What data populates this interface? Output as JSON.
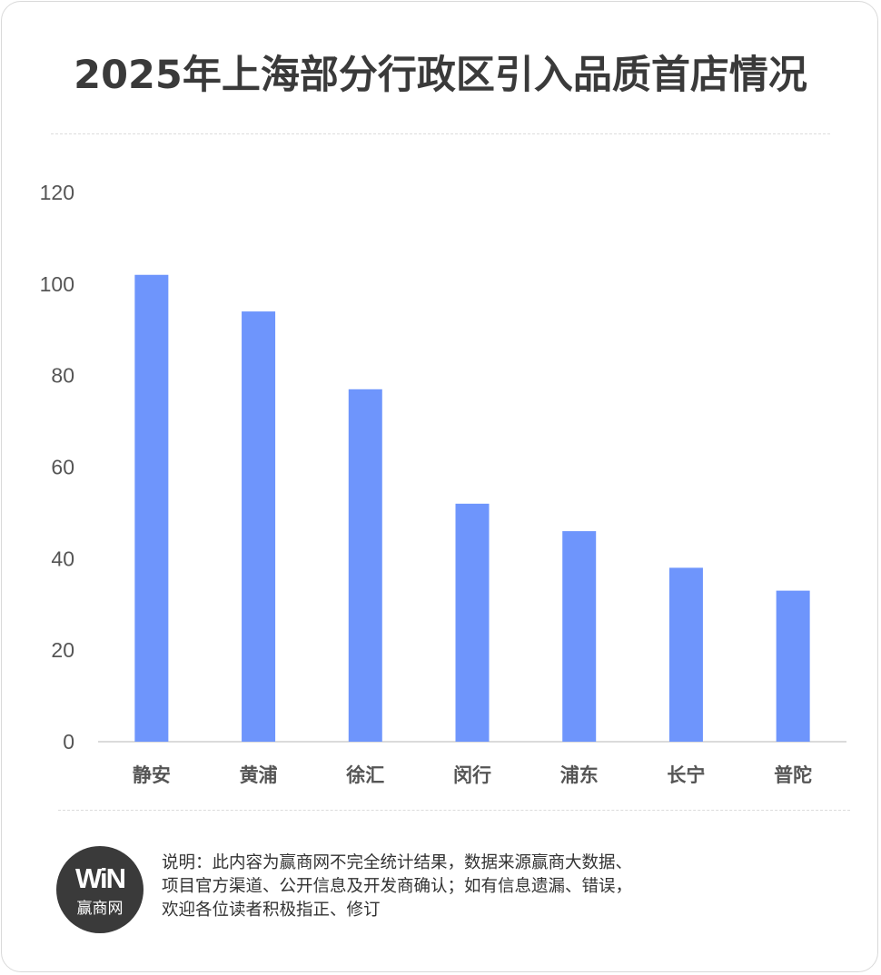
{
  "title": "2025年上海部分行政区引入品质首店情况",
  "chart_data": {
    "type": "bar",
    "categories": [
      "静安",
      "黄浦",
      "徐汇",
      "闵行",
      "浦东",
      "长宁",
      "普陀"
    ],
    "values": [
      102,
      94,
      77,
      52,
      46,
      38,
      33
    ],
    "y_ticks": [
      "0",
      "20",
      "40",
      "60",
      "80",
      "100",
      "120"
    ],
    "ylim": [
      0,
      120
    ],
    "bar_color": "#6e95fc",
    "grid": false
  },
  "logo": {
    "mark": "WiN",
    "name": "赢商网"
  },
  "note_lines": [
    "说明：此内容为赢商网不完全统计结果，数据来源赢商大数据、",
    "项目官方渠道、公开信息及开发商确认；如有信息遗漏、错误，",
    "欢迎各位读者积极指正、修订"
  ]
}
